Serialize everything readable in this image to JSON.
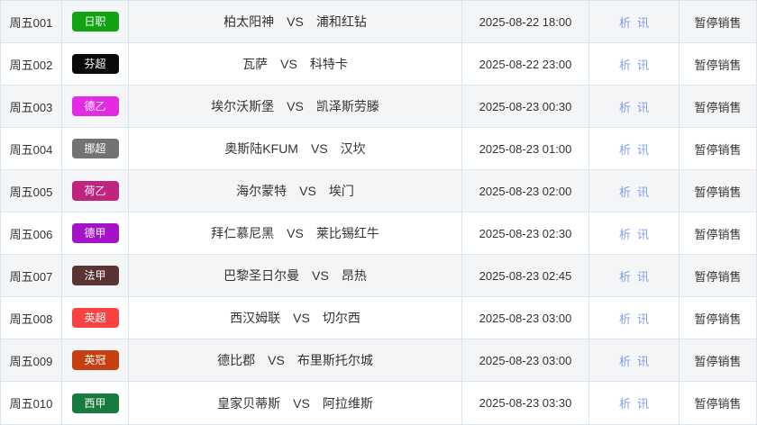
{
  "ui": {
    "vs_label": "VS",
    "analysis_link_label": "析",
    "news_link_label": "讯",
    "status_label": "暂停销售"
  },
  "colors": {
    "border": "#d7e6f5",
    "row_bg": "#ffffff",
    "row_alt_bg": "#f4f5f6",
    "text": "#333333",
    "link": "#7f9eea",
    "badge_text": "#ffffff"
  },
  "rows": [
    {
      "code": "周五001",
      "league": "日职",
      "league_color": "#12a312",
      "home": "柏太阳神",
      "away": "浦和红钻",
      "time": "2025-08-22 18:00"
    },
    {
      "code": "周五002",
      "league": "芬超",
      "league_color": "#0a0a0a",
      "home": "瓦萨",
      "away": "科特卡",
      "time": "2025-08-22 23:00"
    },
    {
      "code": "周五003",
      "league": "德乙",
      "league_color": "#e32be3",
      "home": "埃尔沃斯堡",
      "away": "凯泽斯劳滕",
      "time": "2025-08-23 00:30"
    },
    {
      "code": "周五004",
      "league": "挪超",
      "league_color": "#737373",
      "home": "奥斯陆KFUM",
      "away": "汉坎",
      "time": "2025-08-23 01:00"
    },
    {
      "code": "周五005",
      "league": "荷乙",
      "league_color": "#c0247f",
      "home": "海尔蒙特",
      "away": "埃门",
      "time": "2025-08-23 02:00"
    },
    {
      "code": "周五006",
      "league": "德甲",
      "league_color": "#a414c6",
      "home": "拜仁慕尼黑",
      "away": "莱比锡红牛",
      "time": "2025-08-23 02:30"
    },
    {
      "code": "周五007",
      "league": "法甲",
      "league_color": "#5a3433",
      "home": "巴黎圣日尔曼",
      "away": "昂热",
      "time": "2025-08-23 02:45"
    },
    {
      "code": "周五008",
      "league": "英超",
      "league_color": "#fb4242",
      "home": "西汉姆联",
      "away": "切尔西",
      "time": "2025-08-23 03:00"
    },
    {
      "code": "周五009",
      "league": "英冠",
      "league_color": "#c73e10",
      "home": "德比郡",
      "away": "布里斯托尔城",
      "time": "2025-08-23 03:00"
    },
    {
      "code": "周五010",
      "league": "西甲",
      "league_color": "#177b3d",
      "home": "皇家贝蒂斯",
      "away": "阿拉维斯",
      "time": "2025-08-23 03:30"
    }
  ]
}
